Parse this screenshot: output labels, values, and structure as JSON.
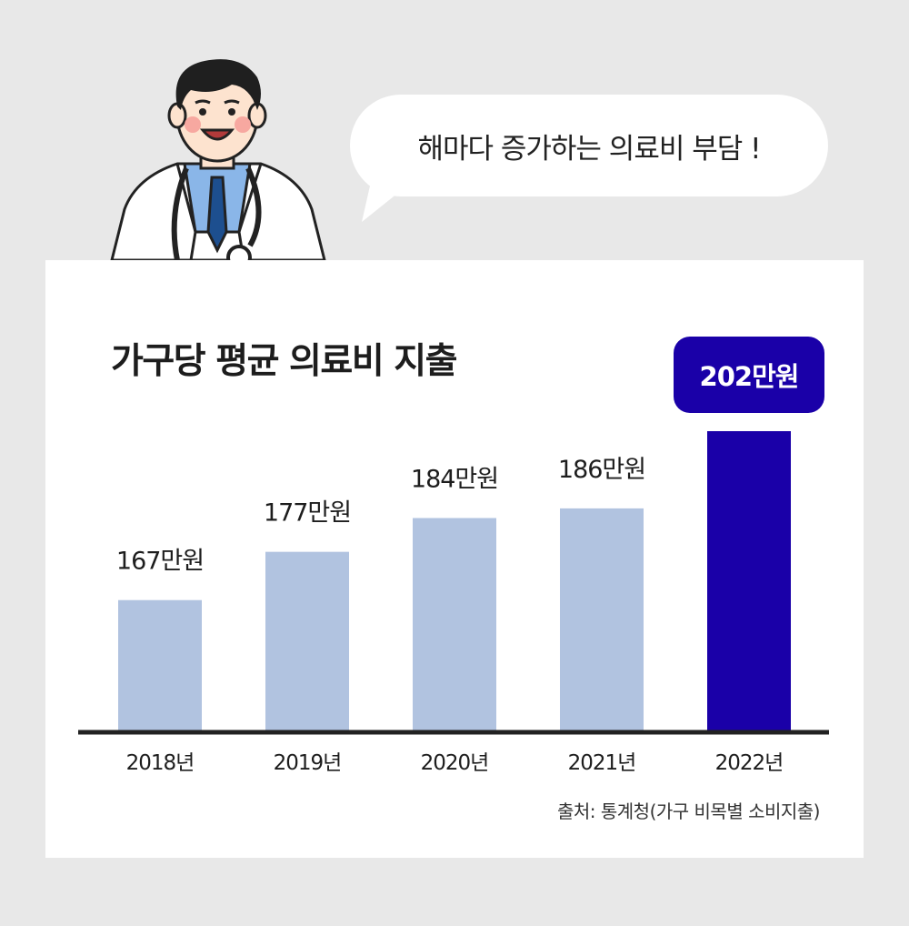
{
  "speech_bubble": {
    "text": "해마다 증가하는 의료비 부담 !"
  },
  "chart_data": {
    "type": "bar",
    "title": "가구당 평균 의료비 지출",
    "categories": [
      "2018년",
      "2019년",
      "2020년",
      "2021년",
      "2022년"
    ],
    "values": [
      167,
      177,
      184,
      186,
      202
    ],
    "value_labels": [
      "167만원",
      "177만원",
      "184만원",
      "186만원",
      "202만원"
    ],
    "unit": "만원",
    "highlight_index": 4,
    "ylim": [
      140,
      202
    ],
    "grid": false,
    "colors": {
      "bar": "#b1c3e0",
      "highlight": "#1a00a8",
      "axis": "#222222"
    }
  },
  "source": "출처: 통계청(가구 비목별 소비지출)"
}
